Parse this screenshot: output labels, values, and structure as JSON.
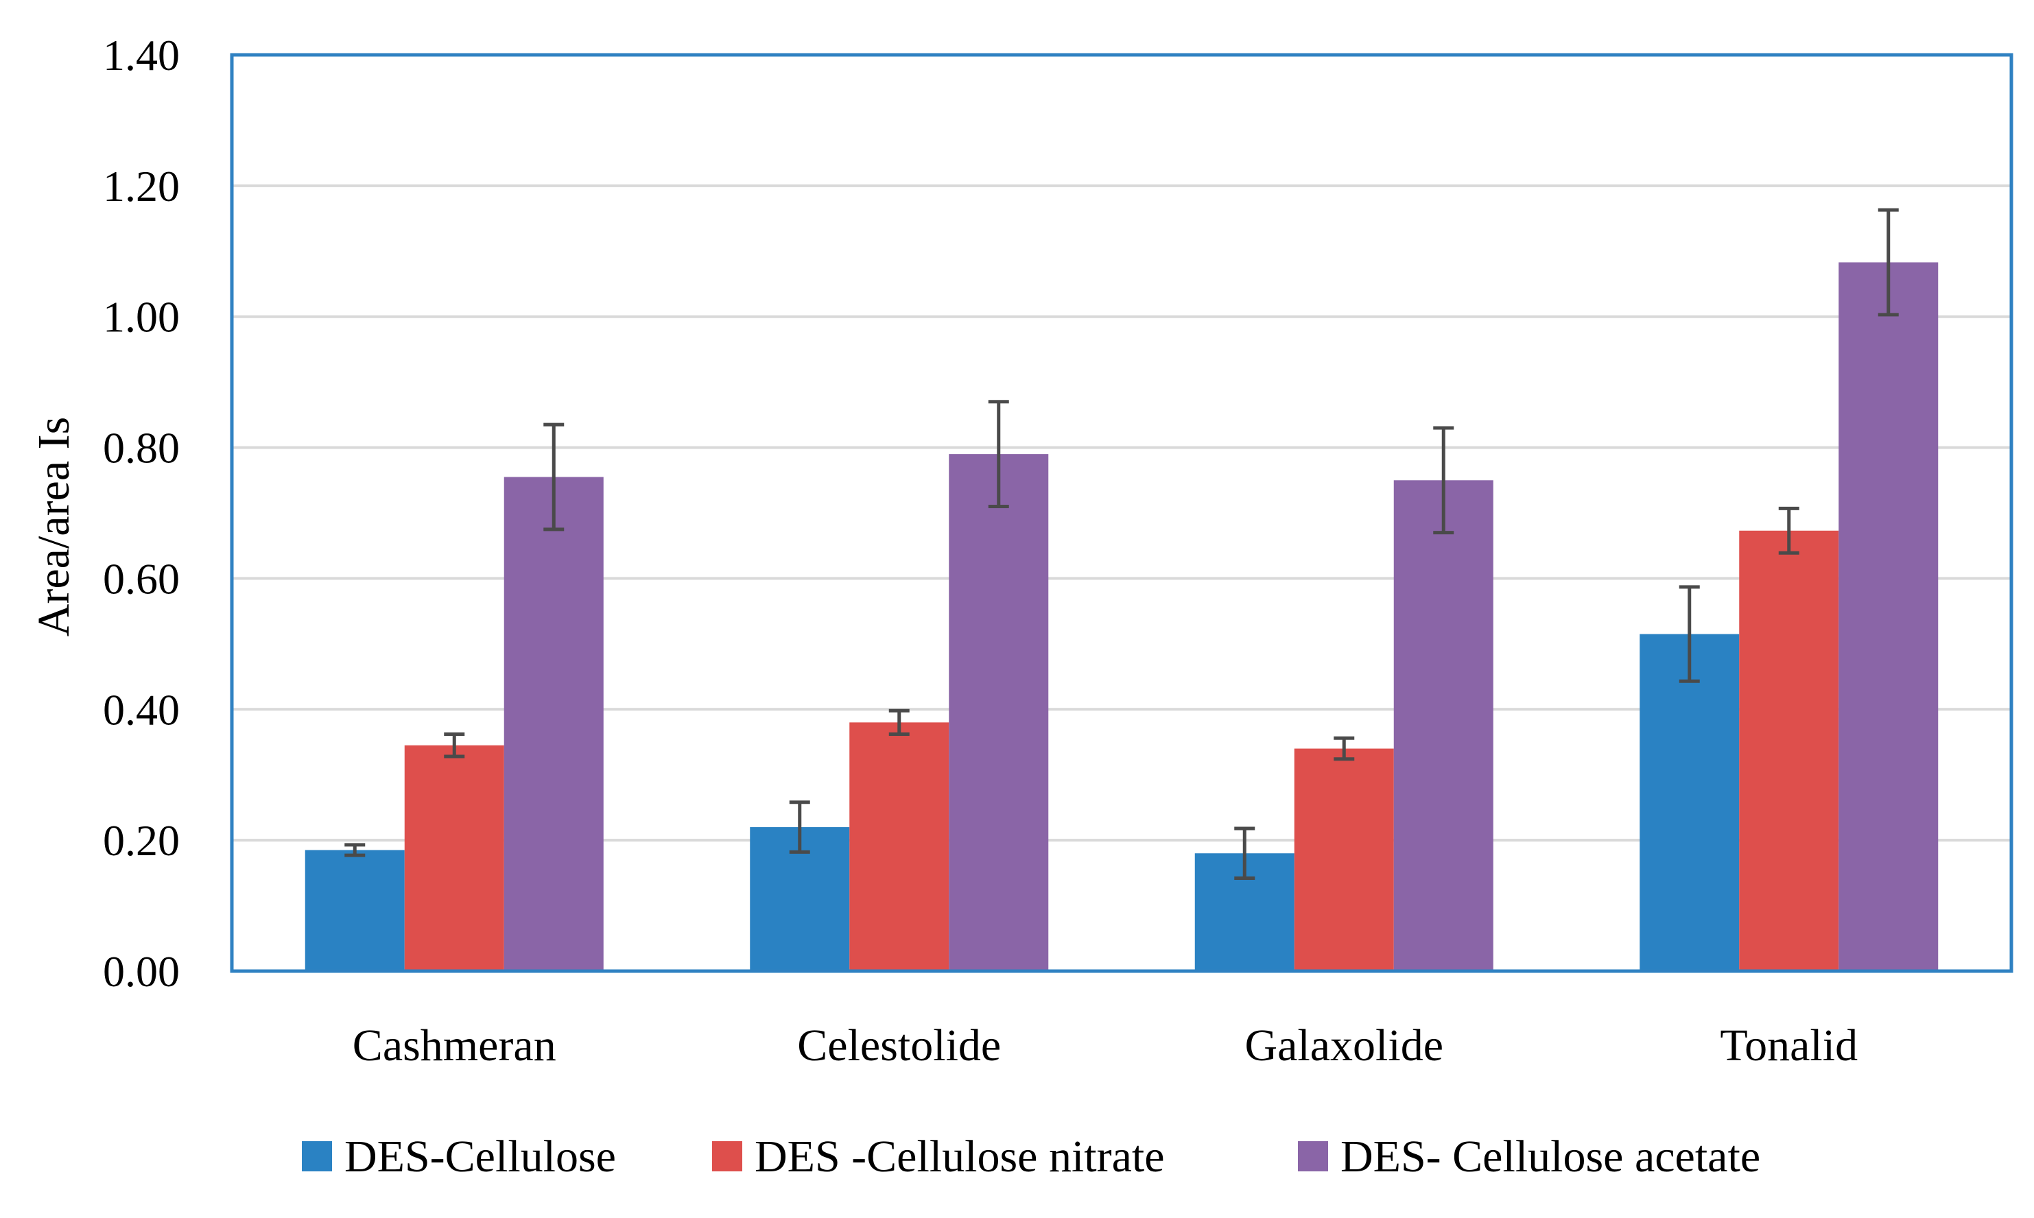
{
  "chart_data": {
    "type": "bar",
    "title": "",
    "xlabel": "",
    "ylabel": "Area/area Is",
    "ylim": [
      0,
      1.4
    ],
    "ytick_step": 0.2,
    "ytick_labels": [
      "0.00",
      "0.20",
      "0.40",
      "0.60",
      "0.80",
      "1.00",
      "1.20",
      "1.40"
    ],
    "grid": true,
    "legend_position": "bottom",
    "categories": [
      "Cashmeran",
      "Celestolide",
      "Galaxolide",
      "Tonalid"
    ],
    "series": [
      {
        "name": "DES-Cellulose",
        "color": "#2a82c3",
        "values": [
          0.185,
          0.22,
          0.18,
          0.515
        ],
        "errors": [
          0.008,
          0.038,
          0.038,
          0.072
        ]
      },
      {
        "name": "DES -Cellulose nitrate",
        "color": "#de4f4c",
        "values": [
          0.345,
          0.38,
          0.34,
          0.673
        ],
        "errors": [
          0.017,
          0.018,
          0.016,
          0.034
        ]
      },
      {
        "name": "DES- Cellulose acetate",
        "color": "#8a65a7",
        "values": [
          0.755,
          0.79,
          0.75,
          1.083
        ],
        "errors": [
          0.08,
          0.08,
          0.08,
          0.08
        ]
      }
    ],
    "colors": {
      "grid": "#d9d9d9",
      "frame": "#2f81c2",
      "error_bar": "#4a4a4a"
    }
  }
}
